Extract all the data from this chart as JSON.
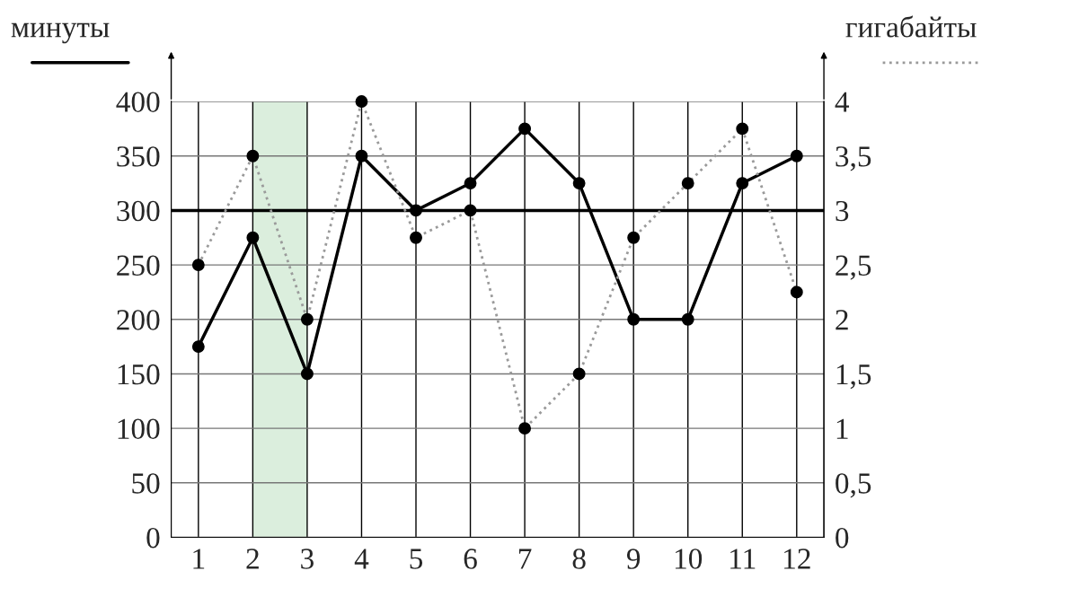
{
  "chart_data": {
    "type": "line",
    "ylabel": "минуты",
    "y2label": "гигабайты",
    "x": [
      1,
      2,
      3,
      4,
      5,
      6,
      7,
      8,
      9,
      10,
      11,
      12
    ],
    "xlim": [
      0.5,
      12.5
    ],
    "xticks": [
      1,
      2,
      3,
      4,
      5,
      6,
      7,
      8,
      9,
      10,
      11,
      12
    ],
    "ylim": [
      0,
      400
    ],
    "yticks": [
      0,
      50,
      100,
      150,
      200,
      250,
      300,
      350,
      400
    ],
    "y2lim": [
      0,
      4
    ],
    "y2ticks": [
      0,
      {
        "value": 0.5,
        "label": "0,5"
      },
      1,
      {
        "value": 1.5,
        "label": "1,5"
      },
      2,
      {
        "value": 2.5,
        "label": "2,5"
      },
      3,
      {
        "value": 3.5,
        "label": "3,5"
      },
      4
    ],
    "series": [
      {
        "color": "#000000",
        "line_style": "solid",
        "values": [
          175,
          275,
          150,
          350,
          300,
          325,
          375,
          325,
          200,
          200,
          325,
          350
        ]
      },
      {
        "color": "#9a9a9a",
        "line_style": "dotted",
        "axis": "y2",
        "values": [
          2.5,
          3.5,
          2,
          4,
          2.75,
          3,
          1,
          1.5,
          2.75,
          3.25,
          3.75,
          2.25
        ]
      }
    ],
    "marker": "circle",
    "grid": true,
    "ref_lines": [
      {
        "axis": "y",
        "value": 300,
        "color": "#000000"
      }
    ],
    "bands": [
      {
        "axis": "x",
        "from": 2,
        "to": 3,
        "color": "#dbeedd"
      }
    ]
  }
}
